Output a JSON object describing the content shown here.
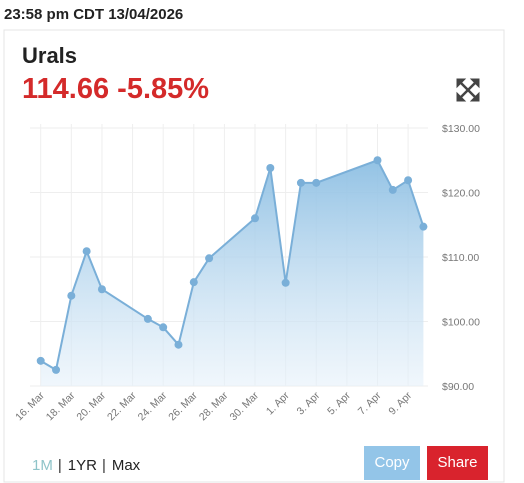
{
  "timestamp": "23:58 pm CDT 13/04/2026",
  "name": "Urals",
  "quote": "114.66 -5.85%",
  "range_options": [
    "1M",
    "1YR",
    "Max"
  ],
  "range_separator": "|",
  "buttons": [
    "Copy",
    "Share"
  ],
  "chart_data": {
    "type": "area",
    "x": [
      16,
      17,
      18,
      19,
      20,
      23,
      24,
      25,
      26,
      27,
      30,
      31,
      32,
      33,
      34,
      38,
      39,
      40,
      41
    ],
    "series": [
      {
        "color": "#7aafd8",
        "values": [
          93.9,
          92.5,
          104.0,
          110.9,
          105.0,
          100.4,
          99.1,
          96.4,
          106.1,
          109.8,
          116.0,
          123.8,
          106.0,
          121.5,
          121.5,
          125.0,
          120.4,
          121.9,
          114.7
        ]
      }
    ],
    "xlim": [
      15.3,
      41.3
    ],
    "xticks": [
      {
        "value": 16,
        "label": "16. Mar"
      },
      {
        "value": 18,
        "label": "18. Mar"
      },
      {
        "value": 20,
        "label": "20. Mar"
      },
      {
        "value": 22,
        "label": "22. Mar"
      },
      {
        "value": 24,
        "label": "24. Mar"
      },
      {
        "value": 26,
        "label": "26. Mar"
      },
      {
        "value": 28,
        "label": "28. Mar"
      },
      {
        "value": 30,
        "label": "30. Mar"
      },
      {
        "value": 32,
        "label": "1. Apr"
      },
      {
        "value": 34,
        "label": "3. Apr"
      },
      {
        "value": 36,
        "label": "5. Apr"
      },
      {
        "value": 38,
        "label": "7. Apr"
      },
      {
        "value": 40,
        "label": "9. Apr"
      }
    ],
    "ylim": [
      90,
      130
    ],
    "yticks": [
      {
        "value": 90,
        "label": "$90.00"
      },
      {
        "value": 100,
        "label": "$100.00"
      },
      {
        "value": 110,
        "label": "$110.00"
      },
      {
        "value": 120,
        "label": "$120.00"
      },
      {
        "value": 130,
        "label": "$130.00"
      }
    ],
    "grid": true
  }
}
